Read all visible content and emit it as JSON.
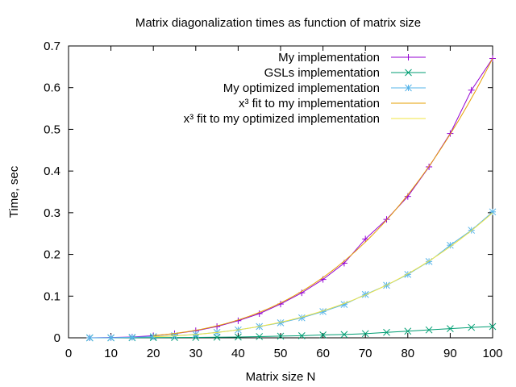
{
  "chart_data": {
    "type": "line",
    "title": "Matrix diagonalization times as function of matrix size",
    "xlabel": "Matrix size N",
    "ylabel": "Time, sec",
    "xlim": [
      0,
      100
    ],
    "ylim": [
      0,
      0.7
    ],
    "xticks": [
      0,
      10,
      20,
      30,
      40,
      50,
      60,
      70,
      80,
      90,
      100
    ],
    "yticks": [
      0,
      0.1,
      0.2,
      0.3,
      0.4,
      0.5,
      0.6,
      0.7
    ],
    "xtick_labels": [
      "0",
      "10",
      "20",
      "30",
      "40",
      "50",
      "60",
      "70",
      "80",
      "90",
      "100"
    ],
    "ytick_labels": [
      "0",
      "0.1",
      "0.2",
      "0.3",
      "0.4",
      "0.5",
      "0.6",
      "0.7"
    ],
    "grid": false,
    "legend_position": "top-right",
    "series": [
      {
        "name": "My implementation",
        "color": "#9400d3",
        "marker": "plus",
        "x": [
          5,
          10,
          15,
          20,
          25,
          30,
          35,
          40,
          45,
          50,
          55,
          60,
          65,
          70,
          75,
          80,
          85,
          90,
          95,
          100
        ],
        "y": [
          0.0001,
          0.0007,
          0.002,
          0.005,
          0.01,
          0.017,
          0.027,
          0.041,
          0.058,
          0.081,
          0.108,
          0.14,
          0.179,
          0.237,
          0.284,
          0.339,
          0.41,
          0.49,
          0.594,
          0.67
        ]
      },
      {
        "name": "GSLs implementation",
        "color": "#009e73",
        "marker": "cross",
        "x": [
          5,
          10,
          15,
          20,
          25,
          30,
          35,
          40,
          45,
          50,
          55,
          60,
          65,
          70,
          75,
          80,
          85,
          90,
          95,
          100
        ],
        "y": [
          0.0,
          0.0,
          0.0002,
          0.0005,
          0.0008,
          0.001,
          0.0015,
          0.002,
          0.003,
          0.004,
          0.005,
          0.007,
          0.008,
          0.01,
          0.013,
          0.016,
          0.019,
          0.022,
          0.025,
          0.027
        ]
      },
      {
        "name": "My optimized implementation",
        "color": "#56b4e9",
        "marker": "star",
        "x": [
          5,
          10,
          15,
          20,
          25,
          30,
          35,
          40,
          45,
          50,
          55,
          60,
          65,
          70,
          75,
          80,
          85,
          90,
          95,
          100
        ],
        "y": [
          0.0,
          0.0003,
          0.0012,
          0.003,
          0.005,
          0.008,
          0.013,
          0.019,
          0.027,
          0.036,
          0.048,
          0.063,
          0.08,
          0.104,
          0.126,
          0.152,
          0.183,
          0.222,
          0.258,
          0.302
        ]
      },
      {
        "name": "x³ fit to my implementation",
        "color": "#e69f00",
        "marker": "none",
        "fit": "cubic",
        "coef": 6.7e-07,
        "x_range": [
          20,
          100
        ]
      },
      {
        "name": "x³ fit to my optimized implementation",
        "color": "#f0e442",
        "marker": "none",
        "fit": "cubic",
        "coef": 3e-07,
        "x_range": [
          20,
          100
        ]
      }
    ]
  }
}
